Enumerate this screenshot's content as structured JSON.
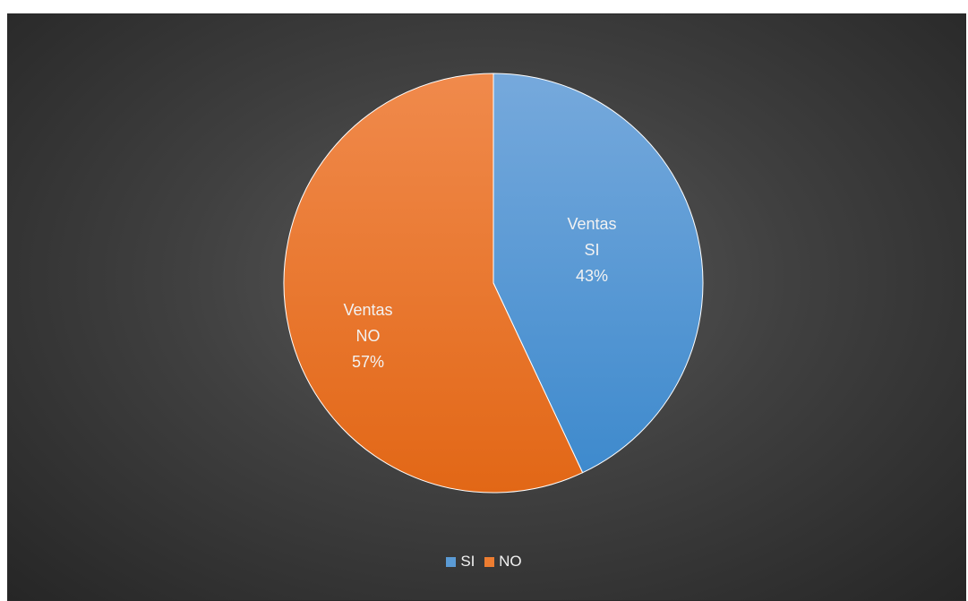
{
  "chart_data": {
    "type": "pie",
    "slices": [
      {
        "name": "SI",
        "label_title": "Ventas",
        "label_name": "SI",
        "label_percent": "43%",
        "value": 43,
        "color": "#5b9bd5"
      },
      {
        "name": "NO",
        "label_title": "Ventas",
        "label_name": "NO",
        "label_percent": "57%",
        "value": 57,
        "color": "#ed7d31"
      }
    ],
    "legend": {
      "position": "bottom"
    }
  }
}
